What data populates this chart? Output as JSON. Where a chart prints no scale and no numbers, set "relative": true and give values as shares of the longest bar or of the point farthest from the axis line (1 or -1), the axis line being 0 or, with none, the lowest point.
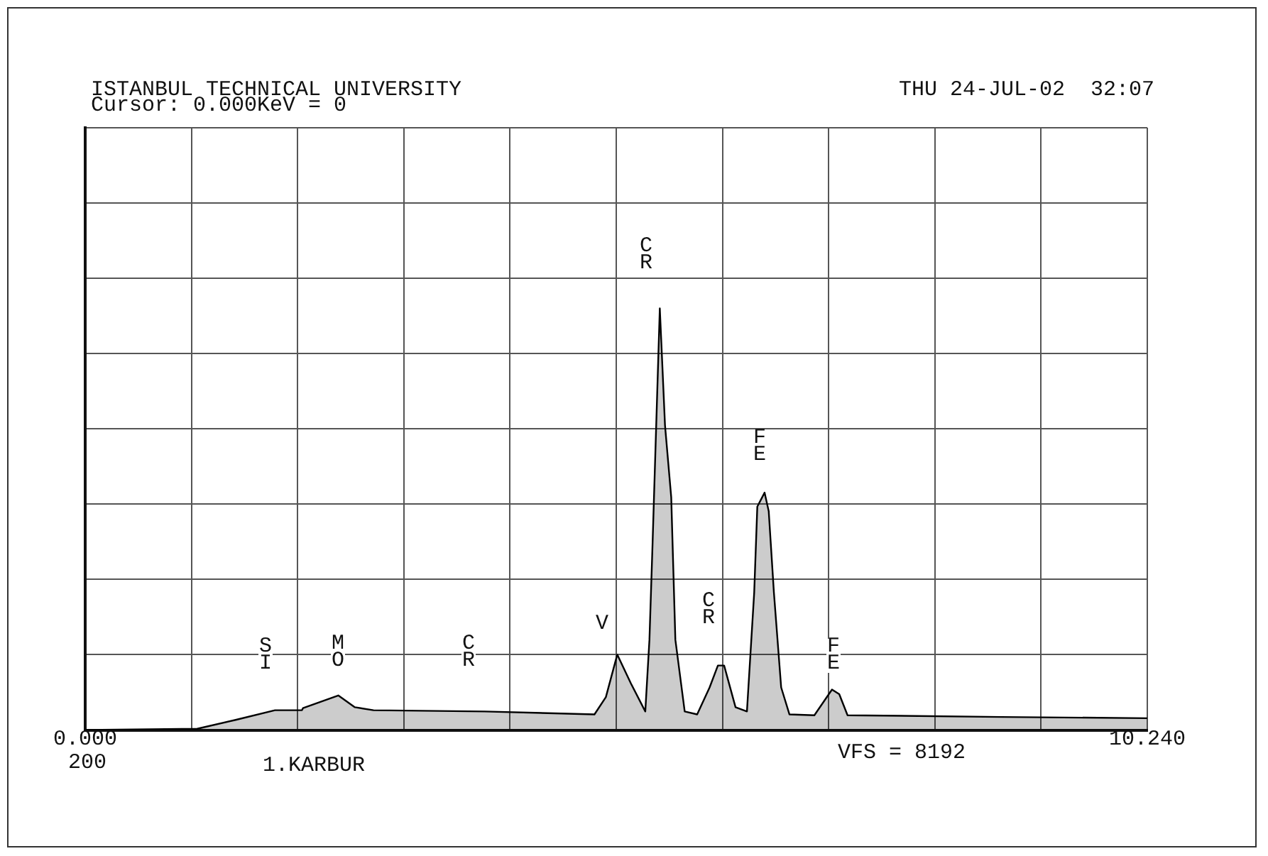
{
  "chart_data": {
    "type": "area",
    "title": "ISTANBUL TECHNICAL UNIVERSITY",
    "subtitle": "Cursor: 0.000KeV = 0",
    "annotations": [
      "THU 24-JUL-02  32:07",
      "200",
      "1.KARBUR",
      "VFS = 8192",
      "SI",
      "MO",
      "CR",
      "V",
      "CR",
      "CR",
      "FE",
      "FE"
    ],
    "relative": true,
    "x": [
      0,
      1.08,
      1.45,
      1.83,
      2.09,
      2.1,
      2.44,
      2.6,
      2.78,
      3.85,
      4.91,
      5.02,
      5.13,
      5.26,
      5.4,
      5.44,
      5.47,
      5.54,
      5.59,
      5.65,
      5.69,
      5.78,
      5.9,
      6.02,
      6.1,
      6.16,
      6.27,
      6.38,
      6.45,
      6.48,
      6.55,
      6.59,
      6.64,
      6.71,
      6.79,
      7.03,
      7.2,
      7.27,
      7.35,
      8.83,
      10.24
    ],
    "series": [
      {
        "color": "#000000",
        "values": [
          0,
          0.003,
          0.024,
          0.047,
          0.047,
          0.052,
          0.082,
          0.054,
          0.047,
          0.044,
          0.037,
          0.078,
          0.179,
          0.111,
          0.044,
          0.214,
          0.441,
          1,
          0.723,
          0.552,
          0.214,
          0.044,
          0.037,
          0.101,
          0.153,
          0.153,
          0.054,
          0.044,
          0.326,
          0.53,
          0.563,
          0.519,
          0.326,
          0.101,
          0.037,
          0.035,
          0.096,
          0.085,
          0.035,
          0.031,
          0.028
        ]
      }
    ],
    "xlim": [
      0,
      10.24
    ],
    "xticks": [
      {
        "value": 0,
        "label": "0.000"
      },
      {
        "value": 1.024,
        "label": null
      },
      {
        "value": 2.048,
        "label": null
      },
      {
        "value": 3.072,
        "label": null
      },
      {
        "value": 4.096,
        "label": null
      },
      {
        "value": 5.12,
        "label": null
      },
      {
        "value": 6.144,
        "label": null
      },
      {
        "value": 7.168,
        "label": null
      },
      {
        "value": 8.192,
        "label": null
      },
      {
        "value": 9.216,
        "label": null
      },
      {
        "value": 10.24,
        "label": "10.240"
      }
    ],
    "grid": true,
    "legend": false,
    "marker": "none",
    "tick_labels": "x"
  }
}
